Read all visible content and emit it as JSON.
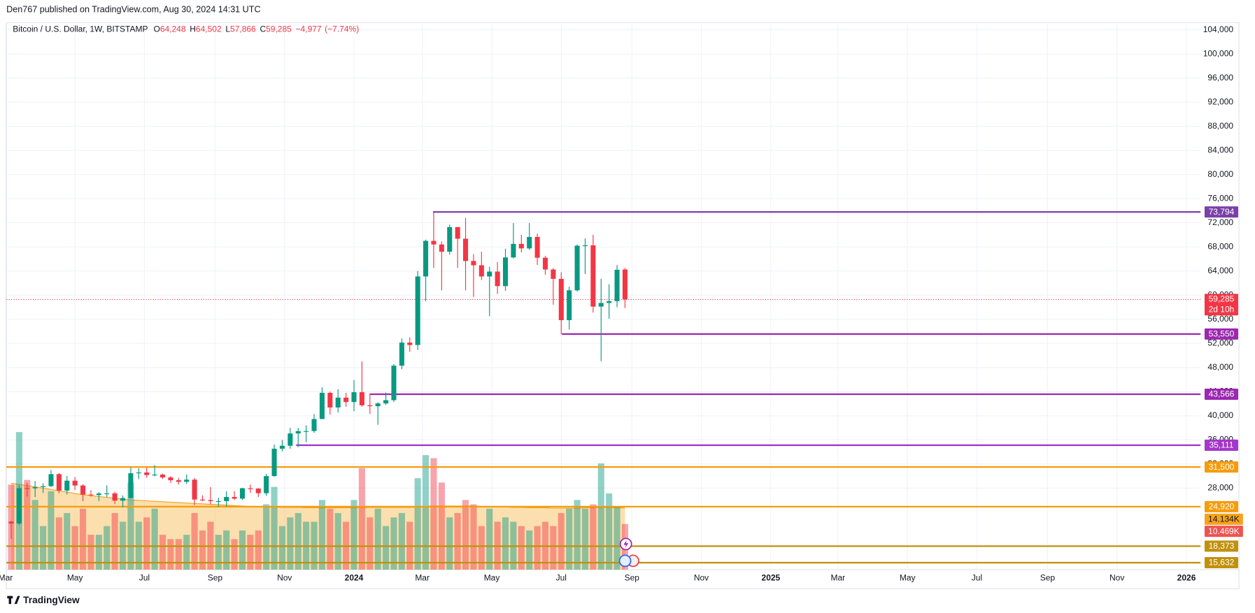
{
  "chart_data": {
    "type": "candlestick",
    "published": "Den767 published on TradingView.com, Aug 30, 2024 14:31 UTC",
    "brand": "TradingView",
    "legend": {
      "symbol": "Bitcoin / U.S. Dollar, 1W, BITSTAMP",
      "items": [
        {
          "key": "O",
          "value": 64248,
          "label": "64,248"
        },
        {
          "key": "H",
          "value": 64502,
          "label": "64,502"
        },
        {
          "key": "L",
          "value": 57866,
          "label": "57,866"
        },
        {
          "key": "C",
          "value": 59285,
          "label": "59,285"
        }
      ],
      "change": {
        "value": -4977,
        "label": "−4,977"
      },
      "change_pct": {
        "value": -7.74,
        "label": "(−7.74%)"
      }
    },
    "up_color": "#089981",
    "down_color": "#f23645",
    "open": [
      22430,
      22130,
      27990,
      27960,
      28170,
      28320,
      30310,
      27590,
      29230,
      28430,
      26920,
      26850,
      27100,
      27120,
      25910,
      26340,
      30460,
      30590,
      30170,
      30240,
      29770,
      29300,
      29040,
      29400,
      26100,
      26000,
      25830,
      25840,
      26530,
      26250,
      27970,
      27920,
      27150,
      29990,
      34530,
      35020,
      37060,
      37450,
      37460,
      39450,
      43800,
      41370,
      43000,
      42270,
      43900,
      41730,
      41580,
      42040,
      42580,
      48300,
      52130,
      51730,
      63100,
      69000,
      68400,
      67200,
      71280,
      69360,
      65660,
      64950,
      63100,
      63900,
      61500,
      66250,
      68500,
      67750,
      69650,
      66200,
      64250,
      62700,
      55850,
      60800,
      68200,
      68260,
      58100,
      58700,
      59000,
      64248
    ],
    "high": [
      22600,
      28480,
      28870,
      29180,
      28790,
      31000,
      30490,
      30020,
      29820,
      28640,
      27660,
      27320,
      28450,
      27400,
      26800,
      31400,
      31280,
      31380,
      31800,
      30400,
      29990,
      29690,
      30250,
      29680,
      26800,
      28150,
      26400,
      27480,
      27470,
      28050,
      28580,
      28000,
      30350,
      35200,
      35980,
      37970,
      37980,
      38400,
      40250,
      44700,
      44000,
      44400,
      43800,
      45900,
      49000,
      43600,
      42250,
      43850,
      48550,
      52800,
      52980,
      64000,
      69200,
      73794,
      68900,
      71700,
      71300,
      72800,
      66800,
      67200,
      64700,
      65500,
      67700,
      71950,
      70000,
      71950,
      70200,
      66500,
      64500,
      63800,
      61400,
      68400,
      69400,
      70000,
      62700,
      61800,
      65000,
      64502
    ],
    "low": [
      19570,
      21900,
      26600,
      26500,
      27200,
      28170,
      27150,
      26940,
      27700,
      25810,
      26580,
      25870,
      26500,
      25380,
      24800,
      26260,
      29500,
      29700,
      29950,
      29500,
      28860,
      28600,
      28700,
      25170,
      25800,
      25330,
      24900,
      24930,
      26000,
      26000,
      27200,
      26540,
      26700,
      29900,
      34080,
      34520,
      34800,
      35620,
      37150,
      39450,
      40200,
      40540,
      41500,
      40750,
      41500,
      40300,
      38500,
      41800,
      42260,
      47700,
      50600,
      50900,
      59000,
      64500,
      60800,
      66700,
      64500,
      60800,
      59700,
      62500,
      56500,
      60200,
      60700,
      66100,
      67100,
      67500,
      65000,
      63400,
      58400,
      53550,
      54300,
      60600,
      63500,
      57100,
      49050,
      56100,
      58000,
      57866
    ],
    "close": [
      22130,
      27990,
      27960,
      28170,
      28320,
      30310,
      27590,
      29230,
      28430,
      26920,
      26850,
      27100,
      27120,
      25910,
      26340,
      30460,
      30590,
      30170,
      30240,
      29770,
      29300,
      29040,
      29400,
      26100,
      26000,
      25830,
      25840,
      26530,
      26250,
      27970,
      27920,
      27150,
      29990,
      34530,
      35020,
      37060,
      37450,
      37460,
      39450,
      43800,
      41370,
      43000,
      42270,
      43900,
      41730,
      41580,
      42040,
      42580,
      48300,
      52130,
      51730,
      63100,
      69000,
      68400,
      67200,
      71280,
      69360,
      65660,
      64950,
      63100,
      63900,
      61500,
      66250,
      68500,
      67750,
      69650,
      66200,
      64250,
      62700,
      55850,
      60800,
      68200,
      68260,
      58100,
      58700,
      59000,
      64200,
      59285
    ],
    "volume": [
      19.5,
      31.6,
      20.6,
      16,
      10,
      18,
      12,
      13,
      10,
      14,
      8,
      8,
      10,
      13,
      11,
      20,
      11,
      12,
      14,
      8,
      7,
      7,
      8,
      13,
      9,
      11,
      8,
      9,
      7,
      9,
      8,
      9,
      15,
      19,
      10,
      12,
      13,
      11,
      11,
      16,
      14,
      13,
      11,
      16,
      23.3,
      12,
      14,
      10,
      12,
      13,
      11,
      21,
      26.3,
      25.6,
      20,
      12,
      13,
      16,
      15,
      10,
      14,
      11,
      12,
      11,
      10,
      9,
      10,
      11,
      10,
      13,
      14,
      16,
      14,
      15,
      24.4,
      17.5,
      14.5,
      10.469
    ],
    "volume_ma": [
      19.8,
      19.6,
      19.3,
      19.0,
      18.7,
      18.4,
      18.1,
      17.8,
      17.5,
      17.2,
      17.0,
      16.8,
      16.6,
      16.4,
      16.2,
      16.0,
      15.9,
      15.8,
      15.7,
      15.6,
      15.5,
      15.4,
      15.3,
      15.2,
      15.1,
      15.0,
      14.9,
      14.8,
      14.7,
      14.6,
      14.5,
      14.4,
      14.4,
      14.4,
      14.3,
      14.3,
      14.3,
      14.2,
      14.2,
      14.2,
      14.2,
      14.2,
      14.2,
      14.2,
      14.3,
      14.3,
      14.3,
      14.3,
      14.3,
      14.3,
      14.3,
      14.4,
      14.5,
      14.6,
      14.6,
      14.6,
      14.6,
      14.6,
      14.6,
      14.5,
      14.5,
      14.4,
      14.4,
      14.3,
      14.3,
      14.2,
      14.2,
      14.2,
      14.1,
      14.1,
      14.1,
      14.1,
      14.2,
      14.2,
      14.3,
      14.3,
      14.2,
      14.134
    ],
    "volume_label": "10.469K",
    "volume_ma_label": "14.134K",
    "volume_ma_color": "#f7a21b",
    "last_price_label": "59,285",
    "countdown": "2d 10h",
    "levels": [
      {
        "value": 73794,
        "label": "73,794",
        "color": "#7b3fa8"
      },
      {
        "value": 53550,
        "label": "53,550",
        "color": "#9c27b0"
      },
      {
        "value": 43566,
        "label": "43,566",
        "color": "#9c27b0"
      },
      {
        "value": 35111,
        "label": "35,111",
        "color": "#a436c9"
      },
      {
        "value": 31500,
        "label": "31,500",
        "color": "#f59c0b"
      },
      {
        "value": 24920,
        "label": "24,920",
        "color": "#f59c0b"
      },
      {
        "value": 18373,
        "label": "18,373",
        "color": "#c0910c"
      },
      {
        "value": 15632,
        "label": "15,632",
        "color": "#c0910c"
      }
    ],
    "ylim": [
      14480,
      104930
    ],
    "yticks": [
      {
        "value": 28000,
        "label": "28,000"
      },
      {
        "value": 32000,
        "label": "32,000"
      },
      {
        "value": 36000,
        "label": "36,000"
      },
      {
        "value": 40000,
        "label": "40,000"
      },
      {
        "value": 44000,
        "label": "44,000"
      },
      {
        "value": 48000,
        "label": "48,000"
      },
      {
        "value": 52000,
        "label": "52,000"
      },
      {
        "value": 56000,
        "label": "56,000"
      },
      {
        "value": 60000,
        "label": "60,000"
      },
      {
        "value": 64000,
        "label": "64,000"
      },
      {
        "value": 68000,
        "label": "68,000"
      },
      {
        "value": 72000,
        "label": "72,000"
      },
      {
        "value": 76000,
        "label": "76,000"
      },
      {
        "value": 80000,
        "label": "80,000"
      },
      {
        "value": 84000,
        "label": "84,000"
      },
      {
        "value": 88000,
        "label": "88,000"
      },
      {
        "value": 92000,
        "label": "92,000"
      },
      {
        "value": 96000,
        "label": "96,000"
      },
      {
        "value": 100000,
        "label": "100,000"
      },
      {
        "value": 104000,
        "label": "104,000"
      }
    ],
    "xlim": [
      -0.6,
      149.2
    ],
    "xticks": [
      {
        "value": -0.71,
        "label": "Mar"
      },
      {
        "value": 8,
        "label": "May"
      },
      {
        "value": 16.71,
        "label": "Jul"
      },
      {
        "value": 25.57,
        "label": "Sep"
      },
      {
        "value": 34.29,
        "label": "Nov"
      },
      {
        "value": 43,
        "label": "2024"
      },
      {
        "value": 51.57,
        "label": "Mar"
      },
      {
        "value": 60.29,
        "label": "May"
      },
      {
        "value": 69,
        "label": "Jul"
      },
      {
        "value": 77.86,
        "label": "Sep"
      },
      {
        "value": 86.57,
        "label": "Nov"
      },
      {
        "value": 95.29,
        "label": "2025"
      },
      {
        "value": 103.71,
        "label": "Mar"
      },
      {
        "value": 112.43,
        "label": "May"
      },
      {
        "value": 121.14,
        "label": "Jul"
      },
      {
        "value": 130,
        "label": "Sep"
      },
      {
        "value": 138.71,
        "label": "Nov"
      },
      {
        "value": 147.43,
        "label": "2026"
      }
    ],
    "grid": true
  }
}
